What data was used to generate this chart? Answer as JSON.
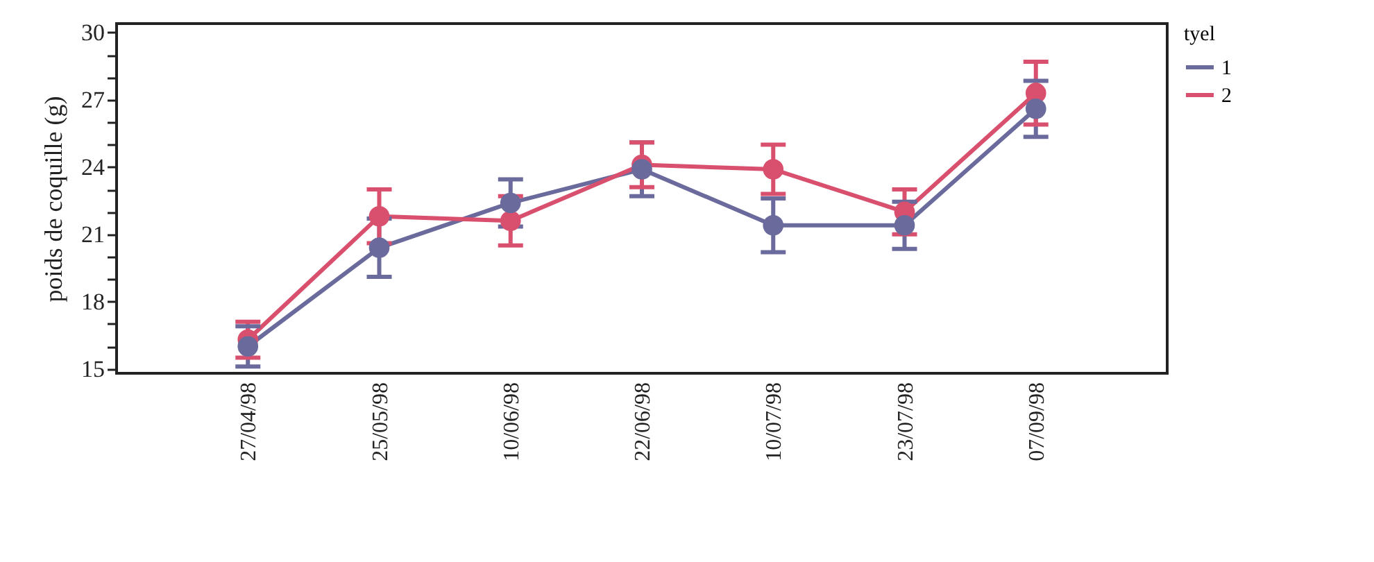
{
  "chart_data": {
    "type": "line",
    "ylabel": "poids de coquille (g)",
    "legend_title": "tyel",
    "categories": [
      "27/04/98",
      "25/05/98",
      "10/06/98",
      "22/06/98",
      "10/07/98",
      "23/07/98",
      "07/09/98"
    ],
    "series": [
      {
        "name": "1",
        "color": "#6a6a9c",
        "values": [
          16.0,
          20.4,
          22.4,
          23.9,
          21.4,
          21.4,
          26.6
        ],
        "errors": [
          0.9,
          1.3,
          1.05,
          1.2,
          1.2,
          1.05,
          1.25
        ]
      },
      {
        "name": "2",
        "color": "#d9506e",
        "values": [
          16.3,
          21.8,
          21.6,
          24.1,
          23.9,
          22.0,
          27.3
        ],
        "errors": [
          0.8,
          1.2,
          1.1,
          1.0,
          1.1,
          1.0,
          1.4
        ]
      }
    ],
    "ylim": [
      14.8,
      30.4
    ],
    "yticks": [
      15,
      {
        "value": 16,
        "label": null
      },
      {
        "value": 17,
        "label": null
      },
      18,
      {
        "value": 19,
        "label": null
      },
      {
        "value": 20,
        "label": null
      },
      21,
      {
        "value": 22,
        "label": null
      },
      {
        "value": 23,
        "label": null
      },
      24,
      {
        "value": 25,
        "label": null
      },
      {
        "value": 26,
        "label": null
      },
      27,
      {
        "value": 28,
        "label": null
      },
      {
        "value": 29,
        "label": null
      },
      30
    ],
    "grid": false,
    "legend": "top right",
    "marker": "circle",
    "line_style": "solid"
  }
}
